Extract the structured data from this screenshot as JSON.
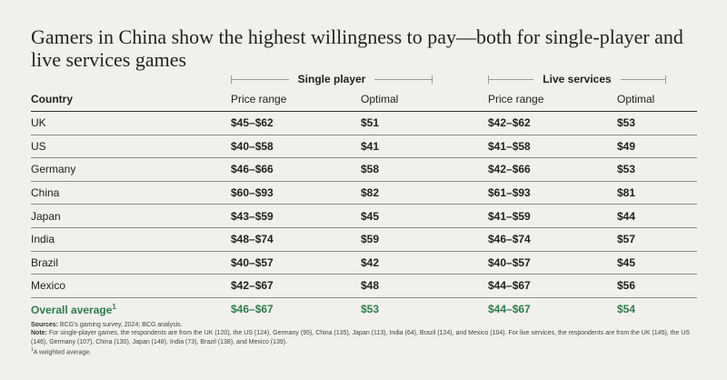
{
  "chart_data": {
    "type": "table",
    "title": "Gamers in China show the highest willingness to pay—both for single-player and live services games",
    "group_headers": [
      "Single player",
      "Live services"
    ],
    "columns": [
      "Country",
      "Price range",
      "Optimal",
      "Price range",
      "Optimal"
    ],
    "rows": [
      {
        "country": "UK",
        "sp_range": "$45–$62",
        "sp_opt": "$51",
        "lv_range": "$42–$62",
        "lv_opt": "$53"
      },
      {
        "country": "US",
        "sp_range": "$40–$58",
        "sp_opt": "$41",
        "lv_range": "$41–$58",
        "lv_opt": "$49"
      },
      {
        "country": "Germany",
        "sp_range": "$46–$66",
        "sp_opt": "$58",
        "lv_range": "$42–$66",
        "lv_opt": "$53"
      },
      {
        "country": "China",
        "sp_range": "$60–$93",
        "sp_opt": "$82",
        "lv_range": "$61–$93",
        "lv_opt": "$81"
      },
      {
        "country": "Japan",
        "sp_range": "$43–$59",
        "sp_opt": "$45",
        "lv_range": "$41–$59",
        "lv_opt": "$44"
      },
      {
        "country": "India",
        "sp_range": "$48–$74",
        "sp_opt": "$59",
        "lv_range": "$46–$74",
        "lv_opt": "$57"
      },
      {
        "country": "Brazil",
        "sp_range": "$40–$57",
        "sp_opt": "$42",
        "lv_range": "$40–$57",
        "lv_opt": "$45"
      },
      {
        "country": "Mexico",
        "sp_range": "$42–$67",
        "sp_opt": "$48",
        "lv_range": "$44–$67",
        "lv_opt": "$56"
      }
    ],
    "overall": {
      "label": "Overall average",
      "marker": "1",
      "sp_range": "$46–$67",
      "sp_opt": "$53",
      "lv_range": "$44–$67",
      "lv_opt": "$54"
    },
    "overall_color": "#2e7d4f"
  },
  "footnotes": {
    "sources_label": "Sources:",
    "sources_text": "BCG's gaming survey, 2024; BCG analysis.",
    "note_label": "Note:",
    "note_text": "For single-player games, the respondents are from the UK (120), the US (124), Germany (95), China (135), Japan (113), India (64), Brazil (124), and Mexico (104). For live services, the respondents are from the UK (145), the US (146), Germany (107), China (130), Japan (148), India (73), Brazil (138), and Mexico (139).",
    "fn_marker": "1",
    "fn_text": "A weighted average."
  }
}
